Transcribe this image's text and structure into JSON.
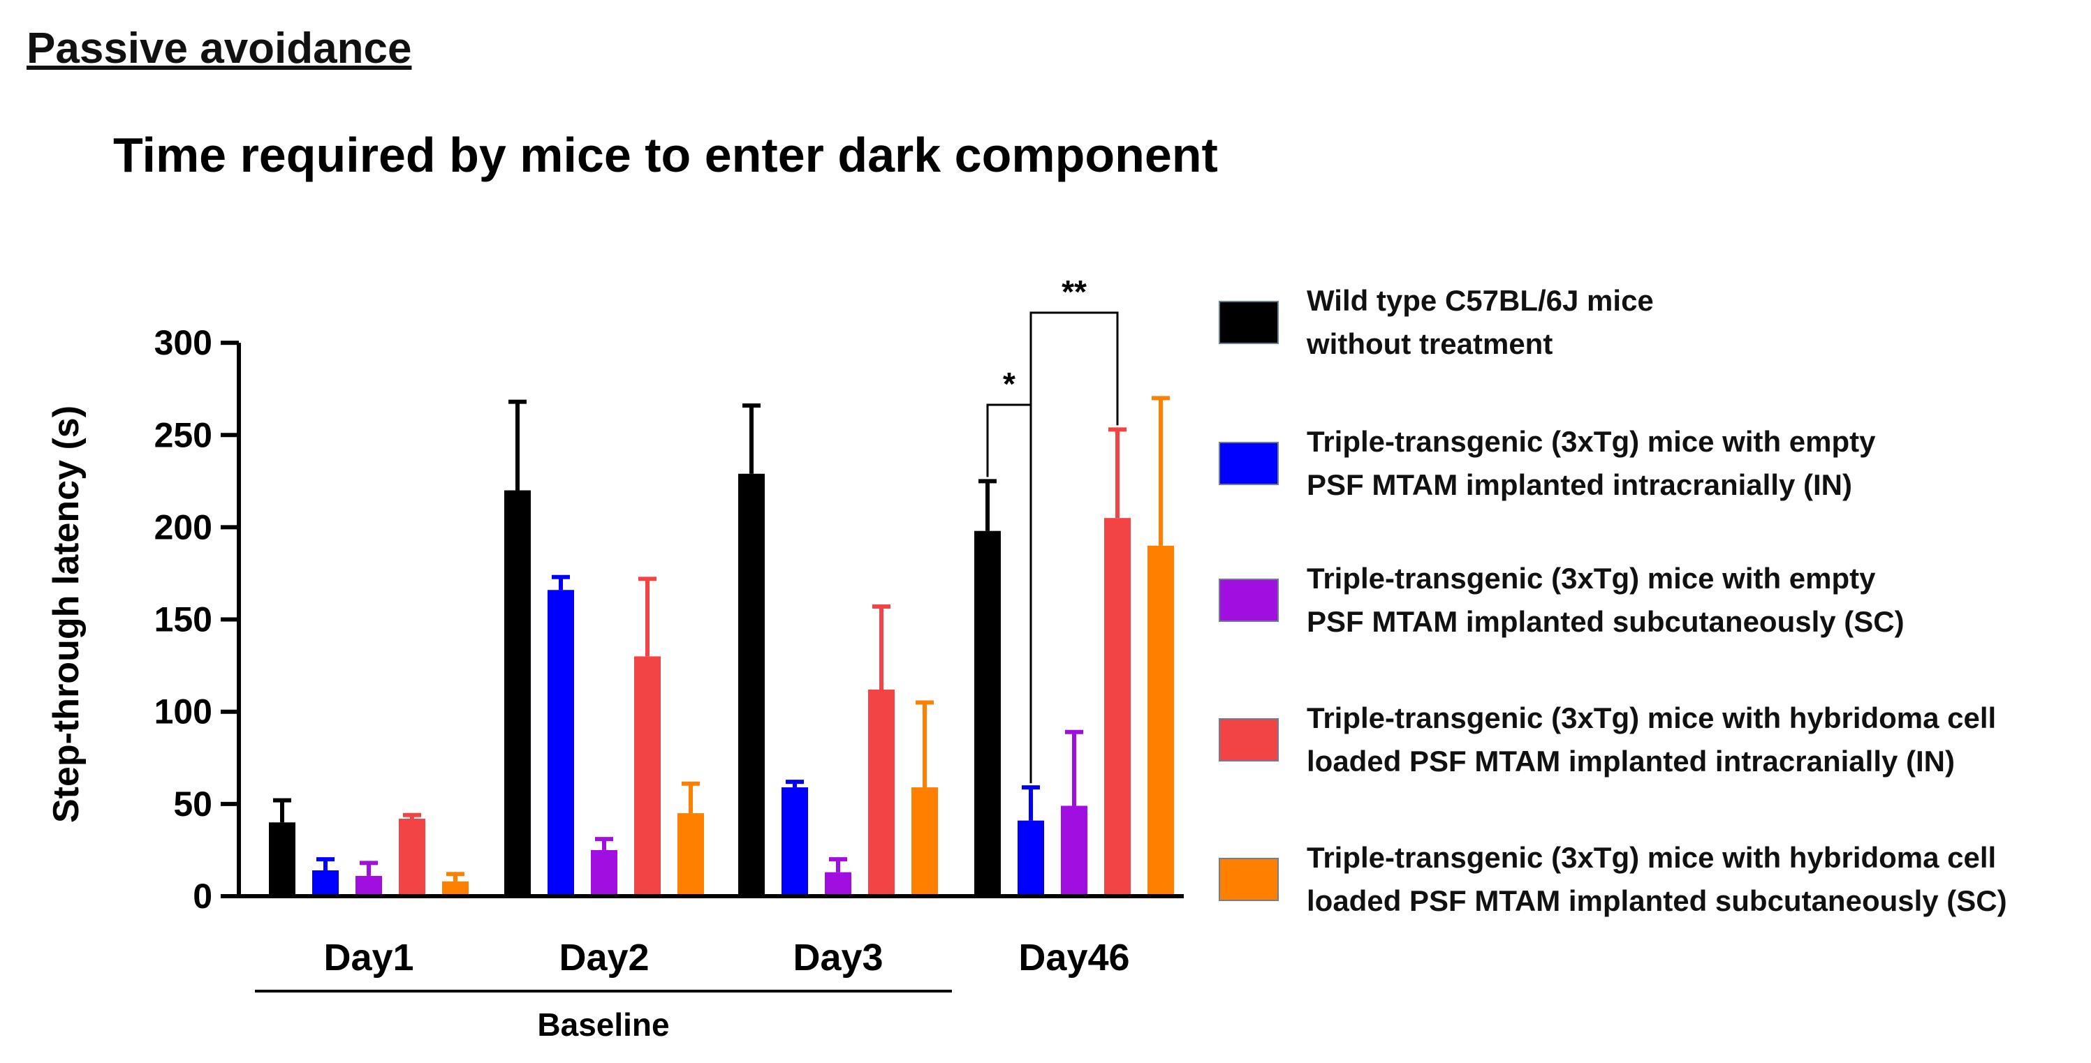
{
  "section_title": "Passive avoidance",
  "chart_data": {
    "type": "bar",
    "title": "Time required by mice to enter dark component",
    "xlabel": "",
    "ylabel": "Step-through latency (s)",
    "ylim": [
      0,
      300
    ],
    "yticks": [
      0,
      50,
      100,
      150,
      200,
      250,
      300
    ],
    "categories": [
      "Day1",
      "Day2",
      "Day3",
      "Day46"
    ],
    "group_label": "Baseline",
    "group_span": [
      "Day1",
      "Day3"
    ],
    "series": [
      {
        "name": "Wild type C57BL/6J mice without treatment",
        "legend_lines": [
          "Wild type C57BL/6J mice",
          "without treatment"
        ],
        "color": "#000000",
        "values": [
          40,
          220,
          229,
          198
        ],
        "errors": [
          12,
          48,
          37,
          27
        ]
      },
      {
        "name": "Triple-transgenic (3xTg) mice with empty PSF MTAM implanted intracranially (IN)",
        "legend_lines": [
          "Triple-transgenic (3xTg) mice with empty",
          "PSF MTAM implanted intracranially (IN)"
        ],
        "color": "#0000ff",
        "values": [
          14,
          166,
          59,
          41
        ],
        "errors": [
          6,
          7,
          3,
          18
        ]
      },
      {
        "name": "Triple-transgenic (3xTg) mice with empty PSF MTAM implanted subcutaneously (SC)",
        "legend_lines": [
          "Triple-transgenic (3xTg) mice with empty",
          "PSF MTAM implanted subcutaneously (SC)"
        ],
        "color": "#a00fe0",
        "values": [
          11,
          25,
          13,
          49
        ],
        "errors": [
          7,
          6,
          7,
          40
        ]
      },
      {
        "name": "Triple-transgenic (3xTg) mice with hybridoma cell loaded PSF MTAM implanted intracranially (IN)",
        "legend_lines": [
          "Triple-transgenic (3xTg) mice with hybridoma cell",
          "loaded PSF MTAM implanted intracranially (IN)"
        ],
        "color": "#f24444",
        "values": [
          42,
          130,
          112,
          205
        ],
        "errors": [
          2,
          42,
          45,
          48
        ]
      },
      {
        "name": "Triple-transgenic (3xTg) mice with hybridoma cell loaded PSF MTAM implanted subcutaneously (SC)",
        "legend_lines": [
          "Triple-transgenic (3xTg) mice with hybridoma cell",
          "loaded PSF MTAM implanted subcutaneously (SC)"
        ],
        "color": "#ff8000",
        "values": [
          8,
          45,
          59,
          190
        ],
        "errors": [
          4,
          16,
          46,
          80
        ]
      }
    ],
    "significance": [
      {
        "category": "Day46",
        "from_series": 0,
        "to_series": 1,
        "label": "*"
      },
      {
        "category": "Day46",
        "from_series": 1,
        "to_series": 3,
        "label": "**"
      }
    ]
  }
}
